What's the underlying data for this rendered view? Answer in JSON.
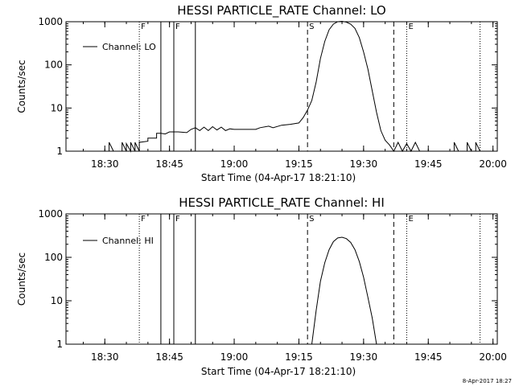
{
  "chart_data": [
    {
      "type": "line",
      "title": "HESSI PARTICLE_RATE Channel: LO",
      "xlabel": "Start Time (04-Apr-17 18:21:10)",
      "ylabel": "Counts/sec",
      "y_scale": "log",
      "ylim": [
        1,
        1000
      ],
      "y_ticks": [
        "1",
        "10",
        "100",
        "1000"
      ],
      "xlim": [
        "18:21",
        "20:01"
      ],
      "x_ticks": [
        "18:30",
        "18:45",
        "19:00",
        "19:15",
        "19:30",
        "19:45",
        "20:00"
      ],
      "legend": {
        "label": "Channel: LO",
        "placement": "top-left"
      },
      "markers": [
        {
          "time": "18:38",
          "style": "dotted",
          "label": "F"
        },
        {
          "time": "18:43",
          "style": "solid",
          "label": ""
        },
        {
          "time": "18:46",
          "style": "solid",
          "label": "F"
        },
        {
          "time": "18:51",
          "style": "solid",
          "label": ""
        },
        {
          "time": "19:17",
          "style": "dashed",
          "label": "S"
        },
        {
          "time": "19:37",
          "style": "dashed",
          "label": ""
        },
        {
          "time": "19:40",
          "style": "dotted",
          "label": "E"
        },
        {
          "time": "19:57",
          "style": "dotted",
          "label": ""
        }
      ],
      "series": [
        {
          "name": "Channel: LO",
          "points": [
            [
              "18:21",
              1
            ],
            [
              "18:31",
              1
            ],
            [
              "18:31",
              1.6
            ],
            [
              "18:32",
              1
            ],
            [
              "18:34",
              1
            ],
            [
              "18:34",
              1.6
            ],
            [
              "18:35",
              1
            ],
            [
              "18:35",
              1.5
            ],
            [
              "18:36",
              1
            ],
            [
              "18:36",
              1.6
            ],
            [
              "18:37",
              1
            ],
            [
              "18:37",
              1.6
            ],
            [
              "18:38",
              1
            ],
            [
              "18:38",
              1.7
            ],
            [
              "18:38",
              1.6
            ],
            [
              "18:40",
              1.7
            ],
            [
              "18:40",
              2.0
            ],
            [
              "18:42",
              2.0
            ],
            [
              "18:42",
              2.6
            ],
            [
              "18:43",
              2.6
            ],
            [
              "18:44",
              2.5
            ],
            [
              "18:45",
              2.8
            ],
            [
              "18:47",
              2.8
            ],
            [
              "18:49",
              2.7
            ],
            [
              "18:50",
              3.2
            ],
            [
              "18:51",
              3.5
            ],
            [
              "18:52",
              3.0
            ],
            [
              "18:53",
              3.6
            ],
            [
              "18:54",
              3.0
            ],
            [
              "18:55",
              3.7
            ],
            [
              "18:56",
              3.1
            ],
            [
              "18:57",
              3.6
            ],
            [
              "18:58",
              3.0
            ],
            [
              "18:59",
              3.3
            ],
            [
              "19:00",
              3.2
            ],
            [
              "19:05",
              3.2
            ],
            [
              "19:06",
              3.5
            ],
            [
              "19:08",
              3.8
            ],
            [
              "19:09",
              3.5
            ],
            [
              "19:11",
              4.0
            ],
            [
              "19:13",
              4.2
            ],
            [
              "19:15",
              4.5
            ],
            [
              "19:16",
              6
            ],
            [
              "19:17",
              9
            ],
            [
              "19:18",
              15
            ],
            [
              "19:19",
              40
            ],
            [
              "19:20",
              140
            ],
            [
              "19:21",
              350
            ],
            [
              "19:22",
              650
            ],
            [
              "19:23",
              880
            ],
            [
              "19:24",
              1000
            ],
            [
              "19:25",
              1020
            ],
            [
              "19:26",
              980
            ],
            [
              "19:27",
              880
            ],
            [
              "19:28",
              700
            ],
            [
              "19:29",
              430
            ],
            [
              "19:30",
              200
            ],
            [
              "19:31",
              80
            ],
            [
              "19:32",
              25
            ],
            [
              "19:33",
              8
            ],
            [
              "19:34",
              3
            ],
            [
              "19:35",
              1.8
            ],
            [
              "19:36",
              1.4
            ],
            [
              "19:37",
              1
            ],
            [
              "19:38",
              1.6
            ],
            [
              "19:39",
              1
            ],
            [
              "19:40",
              1.5
            ],
            [
              "19:41",
              1
            ],
            [
              "19:42",
              1.6
            ],
            [
              "19:43",
              1
            ],
            [
              "19:44",
              1
            ],
            [
              "19:51",
              1
            ],
            [
              "19:51",
              1.6
            ],
            [
              "19:52",
              1
            ],
            [
              "19:54",
              1
            ],
            [
              "19:54",
              1.6
            ],
            [
              "19:55",
              1
            ],
            [
              "19:56",
              1
            ],
            [
              "19:56",
              1.6
            ],
            [
              "19:57",
              1
            ],
            [
              "20:01",
              1
            ]
          ]
        }
      ]
    },
    {
      "type": "line",
      "title": "HESSI PARTICLE_RATE Channel: HI",
      "xlabel": "Start Time (04-Apr-17 18:21:10)",
      "ylabel": "Counts/sec",
      "y_scale": "log",
      "ylim": [
        1,
        1000
      ],
      "y_ticks": [
        "1",
        "10",
        "100",
        "1000"
      ],
      "xlim": [
        "18:21",
        "20:01"
      ],
      "x_ticks": [
        "18:30",
        "18:45",
        "19:00",
        "19:15",
        "19:30",
        "19:45",
        "20:00"
      ],
      "legend": {
        "label": "Channel: HI",
        "placement": "top-left"
      },
      "markers": [
        {
          "time": "18:38",
          "style": "dotted",
          "label": "F"
        },
        {
          "time": "18:43",
          "style": "solid",
          "label": ""
        },
        {
          "time": "18:46",
          "style": "solid",
          "label": "F"
        },
        {
          "time": "18:51",
          "style": "solid",
          "label": ""
        },
        {
          "time": "19:17",
          "style": "dashed",
          "label": "S"
        },
        {
          "time": "19:37",
          "style": "dashed",
          "label": ""
        },
        {
          "time": "19:40",
          "style": "dotted",
          "label": "E"
        },
        {
          "time": "19:57",
          "style": "dotted",
          "label": ""
        }
      ],
      "series": [
        {
          "name": "Channel: HI",
          "points": [
            [
              "19:18",
              1
            ],
            [
              "19:19",
              6
            ],
            [
              "19:20",
              28
            ],
            [
              "19:21",
              75
            ],
            [
              "19:22",
              150
            ],
            [
              "19:23",
              230
            ],
            [
              "19:24",
              280
            ],
            [
              "19:25",
              290
            ],
            [
              "19:26",
              270
            ],
            [
              "19:27",
              220
            ],
            [
              "19:28",
              150
            ],
            [
              "19:29",
              80
            ],
            [
              "19:30",
              35
            ],
            [
              "19:31",
              12
            ],
            [
              "19:32",
              4
            ],
            [
              "19:33",
              1
            ]
          ]
        }
      ]
    }
  ],
  "footer": {
    "stamp": "8-Apr-2017 18:27"
  }
}
